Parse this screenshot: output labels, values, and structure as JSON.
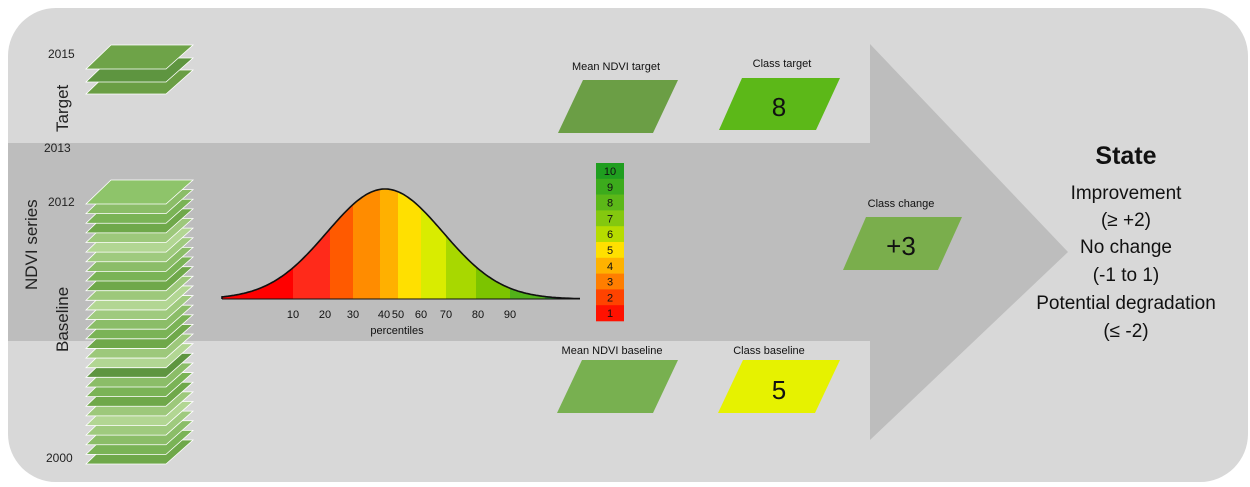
{
  "years": {
    "y2015": "2015",
    "y2013": "2013",
    "y2012": "2012",
    "y2000": "2000"
  },
  "side_labels": {
    "target": "Target",
    "ndvi_series": "NDVI series",
    "baseline": "Baseline"
  },
  "histogram": {
    "x_label": "percentiles",
    "ticks": [
      "10",
      "20",
      "30",
      "40",
      "50",
      "60",
      "70",
      "80",
      "90"
    ],
    "band_colors": [
      "#ff0000",
      "#ff2a1a",
      "#ff5a00",
      "#ff8c00",
      "#ffb000",
      "#ffe000",
      "#d9ec00",
      "#a8d800",
      "#7cc400",
      "#52b21a",
      "#2c9c2c"
    ]
  },
  "class_scale": {
    "labels": [
      "10",
      "9",
      "8",
      "7",
      "6",
      "5",
      "4",
      "3",
      "2",
      "1"
    ],
    "colors": [
      "#1f9e1f",
      "#3cab1c",
      "#5cb818",
      "#84c80f",
      "#b6dc00",
      "#ffe000",
      "#ffb200",
      "#ff7e00",
      "#ff4300",
      "#ff1100"
    ]
  },
  "mean_target": {
    "label": "Mean NDVI target",
    "color": "#6b9e45"
  },
  "class_target": {
    "label": "Class target",
    "value": "8",
    "color": "#5cb818"
  },
  "mean_baseline": {
    "label": "Mean NDVI baseline",
    "color": "#78b050"
  },
  "class_baseline": {
    "label": "Class baseline",
    "value": "5",
    "color": "#e6f200"
  },
  "class_change": {
    "label": "Class change",
    "value": "+3",
    "color": "#7aae4c"
  },
  "state": {
    "title": "State",
    "lines": [
      "Improvement",
      "(≥ +2)",
      "No change",
      "(-1 to 1)",
      "Potential degradation",
      "(≤ -2)"
    ]
  }
}
